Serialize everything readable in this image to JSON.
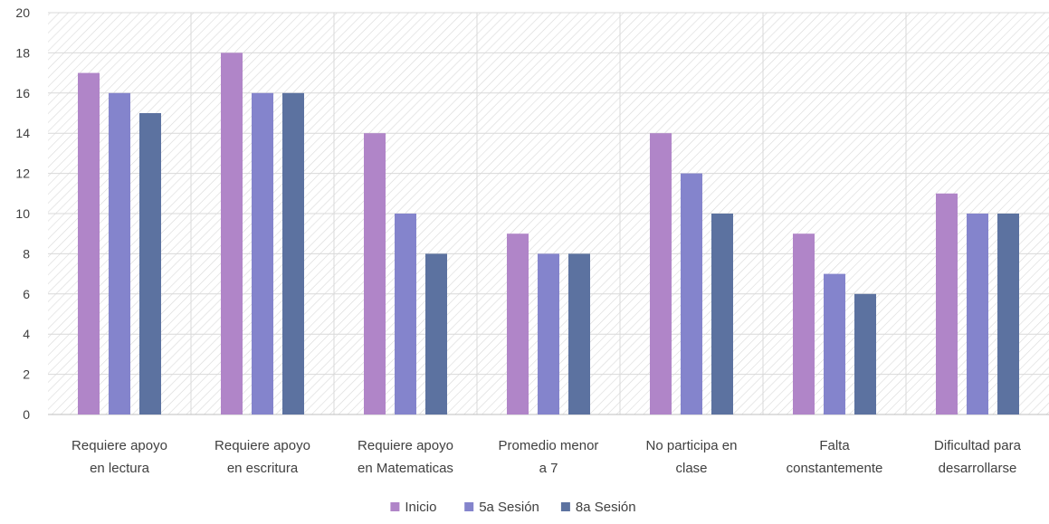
{
  "chart_data": {
    "type": "bar",
    "title": "",
    "xlabel": "",
    "ylabel": "",
    "ylim": [
      0,
      20
    ],
    "yticks": [
      0,
      2,
      4,
      6,
      8,
      10,
      12,
      14,
      16,
      18,
      20
    ],
    "grid": true,
    "legend_position": "bottom",
    "categories": [
      [
        "Requiere apoyo",
        "en lectura"
      ],
      [
        "Requiere apoyo",
        "en escritura"
      ],
      [
        "Requiere apoyo",
        "en Matematicas"
      ],
      [
        "Promedio menor",
        "a 7"
      ],
      [
        "No participa en",
        "clase"
      ],
      [
        "Falta",
        "constantemente"
      ],
      [
        "Dificultad para",
        "desarrollarse"
      ]
    ],
    "series": [
      {
        "name": "Inicio",
        "color": "#b085c8",
        "values": [
          17,
          18,
          14,
          9,
          14,
          9,
          11
        ]
      },
      {
        "name": "5a Sesión",
        "color": "#8484cc",
        "values": [
          16,
          16,
          10,
          8,
          12,
          7,
          10
        ]
      },
      {
        "name": "8a Sesión",
        "color": "#5c72a0",
        "values": [
          15,
          16,
          8,
          8,
          10,
          6,
          10
        ]
      }
    ]
  }
}
